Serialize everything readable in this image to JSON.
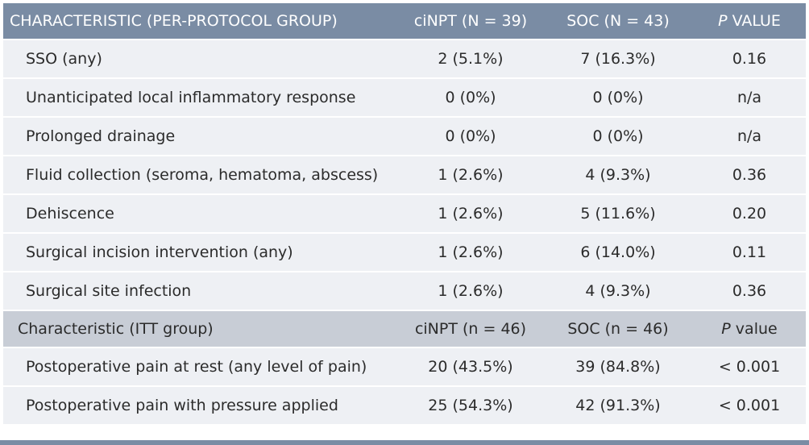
{
  "per_protocol": {
    "header": {
      "characteristic": "CHARACTERISTIC (PER-PROTOCOL GROUP)",
      "cinpt": "ciNPT (N = 39)",
      "soc": "SOC (N = 43)",
      "p_letter": "P",
      "p_rest": " VALUE"
    },
    "rows": [
      {
        "label": "SSO (any)",
        "cinpt": "2 (5.1%)",
        "soc": "7 (16.3%)",
        "p": "0.16"
      },
      {
        "label": "Unanticipated local inflammatory response",
        "cinpt": "0 (0%)",
        "soc": "0 (0%)",
        "p": "n/a"
      },
      {
        "label": "Prolonged drainage",
        "cinpt": "0 (0%)",
        "soc": "0 (0%)",
        "p": "n/a"
      },
      {
        "label": "Fluid collection (seroma, hematoma, abscess)",
        "cinpt": "1 (2.6%)",
        "soc": "4 (9.3%)",
        "p": "0.36"
      },
      {
        "label": "Dehiscence",
        "cinpt": "1 (2.6%)",
        "soc": "5 (11.6%)",
        "p": "0.20"
      },
      {
        "label": "Surgical incision intervention (any)",
        "cinpt": "1 (2.6%)",
        "soc": "6 (14.0%)",
        "p": "0.11"
      },
      {
        "label": "Surgical site infection",
        "cinpt": "1 (2.6%)",
        "soc": "4 (9.3%)",
        "p": "0.36"
      }
    ]
  },
  "itt": {
    "header": {
      "characteristic": "Characteristic (ITT group)",
      "cinpt": "ciNPT (n = 46)",
      "soc": "SOC (n = 46)",
      "p_letter": "P",
      "p_rest": " value"
    },
    "rows": [
      {
        "label": "Postoperative pain at rest (any level of pain)",
        "cinpt": "20 (43.5%)",
        "soc": "39 (84.8%)",
        "p": "< 0.001"
      },
      {
        "label": "Postoperative pain with pressure applied",
        "cinpt": "25 (54.3%)",
        "soc": "42 (91.3%)",
        "p": "< 0.001"
      }
    ]
  },
  "colors": {
    "header_main_bg": "#7a8ca4",
    "header_sub_bg": "#c8cdd6",
    "row_bg": "#eef0f4"
  }
}
